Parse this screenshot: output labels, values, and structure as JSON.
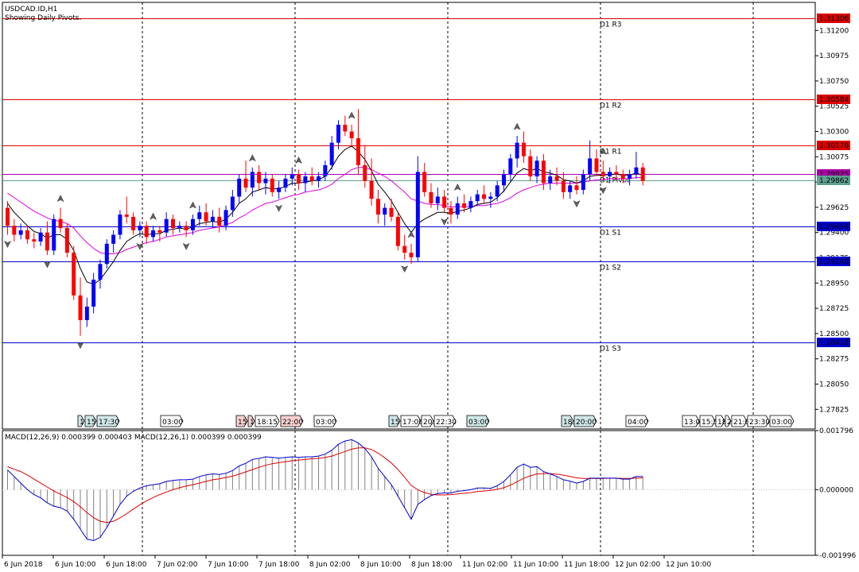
{
  "chart_data": [
    {
      "type": "candlestick",
      "symbol_title": "USDCAD.ID,H1",
      "subtitle": "Showing Daily Pivots.",
      "ylim": [
        1.2765,
        1.3145
      ],
      "y_ticks": [
        "1.31200",
        "1.30975",
        "1.30750",
        "1.30525",
        "1.30300",
        "1.30075",
        "1.29850",
        "1.29625",
        "1.29400",
        "1.29175",
        "1.28950",
        "1.28725",
        "1.28500",
        "1.28275",
        "1.28050",
        "1.27825"
      ],
      "pivots": [
        {
          "label": "D1 R3",
          "value": 1.31306,
          "price_label": "1.31306",
          "color": "#dd0000"
        },
        {
          "label": "D1 R2",
          "value": 1.30584,
          "price_label": "1.30584",
          "color": "#dd0000"
        },
        {
          "label": "D1 R1",
          "value": 1.30176,
          "price_label": "1.30176",
          "color": "#dd0000"
        },
        {
          "label": "D1 Pivot",
          "value": 1.29925,
          "price_label": "1.29925",
          "color": "#aa00aa"
        },
        {
          "label": "D1 S1",
          "value": 1.29454,
          "price_label": "1.29454",
          "color": "#0000cc"
        },
        {
          "label": "D1 S2",
          "value": 1.2914,
          "price_label": "1.29140",
          "color": "#0000cc"
        },
        {
          "label": "D1 S3",
          "value": 1.28418,
          "price_label": "1.28418",
          "color": "#0000cc"
        }
      ],
      "current_price": {
        "value": 1.29862,
        "price_label": "1.29862",
        "color": "#5fa090"
      },
      "bull_color": "#0000ff",
      "bear_color": "#ff0000",
      "candles": [
        [
          1.2962,
          1.2968,
          1.2938,
          1.2946
        ],
        [
          1.2946,
          1.2952,
          1.2932,
          1.2938
        ],
        [
          1.2938,
          1.2948,
          1.2934,
          1.2942
        ],
        [
          1.2942,
          1.2946,
          1.293,
          1.2934
        ],
        [
          1.2934,
          1.294,
          1.2926,
          1.2932
        ],
        [
          1.2932,
          1.2944,
          1.2928,
          1.294
        ],
        [
          1.294,
          1.295,
          1.292,
          1.2924
        ],
        [
          1.2924,
          1.2956,
          1.292,
          1.2952
        ],
        [
          1.2952,
          1.2962,
          1.294,
          1.2944
        ],
        [
          1.2944,
          1.2948,
          1.2918,
          1.2922
        ],
        [
          1.2922,
          1.2928,
          1.288,
          1.2884
        ],
        [
          1.2884,
          1.29,
          1.2848,
          1.2862
        ],
        [
          1.2862,
          1.2882,
          1.2856,
          1.2874
        ],
        [
          1.2874,
          1.2904,
          1.2868,
          1.2898
        ],
        [
          1.2898,
          1.2916,
          1.289,
          1.2912
        ],
        [
          1.2912,
          1.2934,
          1.2908,
          1.293
        ],
        [
          1.293,
          1.2942,
          1.2922,
          1.2938
        ],
        [
          1.2938,
          1.296,
          1.2934,
          1.2956
        ],
        [
          1.2956,
          1.2972,
          1.2948,
          1.2954
        ],
        [
          1.2954,
          1.2958,
          1.2938,
          1.2942
        ],
        [
          1.2942,
          1.295,
          1.2936,
          1.2946
        ],
        [
          1.2946,
          1.295,
          1.293,
          1.2936
        ],
        [
          1.2936,
          1.2946,
          1.2932,
          1.2942
        ],
        [
          1.2942,
          1.2946,
          1.2932,
          1.294
        ],
        [
          1.294,
          1.2958,
          1.2936,
          1.2952
        ],
        [
          1.2952,
          1.2956,
          1.2938,
          1.2944
        ],
        [
          1.2944,
          1.295,
          1.294,
          1.2946
        ],
        [
          1.2946,
          1.295,
          1.2936,
          1.2942
        ],
        [
          1.2942,
          1.2956,
          1.2938,
          1.2952
        ],
        [
          1.2952,
          1.2964,
          1.2946,
          1.2958
        ],
        [
          1.2958,
          1.2966,
          1.2946,
          1.295
        ],
        [
          1.295,
          1.296,
          1.2944,
          1.2954
        ],
        [
          1.2954,
          1.2962,
          1.294,
          1.2946
        ],
        [
          1.2946,
          1.2964,
          1.2942,
          1.296
        ],
        [
          1.296,
          1.2978,
          1.2954,
          1.2972
        ],
        [
          1.2972,
          1.2992,
          1.2966,
          1.2988
        ],
        [
          1.2988,
          1.3004,
          1.2976,
          1.298
        ],
        [
          1.298,
          1.2998,
          1.2972,
          1.2994
        ],
        [
          1.2994,
          1.3,
          1.2978,
          1.2984
        ],
        [
          1.2984,
          1.2994,
          1.2974,
          1.2988
        ],
        [
          1.2988,
          1.2992,
          1.2972,
          1.2976
        ],
        [
          1.2976,
          1.2986,
          1.297,
          1.298
        ],
        [
          1.298,
          1.2992,
          1.2976,
          1.2988
        ],
        [
          1.2988,
          1.2998,
          1.2982,
          1.2992
        ],
        [
          1.2992,
          1.2996,
          1.2978,
          1.2984
        ],
        [
          1.2984,
          1.2994,
          1.2976,
          1.299
        ],
        [
          1.299,
          1.2998,
          1.2982,
          1.2986
        ],
        [
          1.2986,
          1.2994,
          1.298,
          1.299
        ],
        [
          1.299,
          1.3004,
          1.2986,
          1.3
        ],
        [
          1.3,
          1.3026,
          1.2996,
          1.302
        ],
        [
          1.302,
          1.304,
          1.3014,
          1.3036
        ],
        [
          1.3036,
          1.3044,
          1.3026,
          1.303
        ],
        [
          1.303,
          1.3036,
          1.3016,
          1.3024
        ],
        [
          1.3024,
          1.305,
          1.2992,
          1.3
        ],
        [
          1.3,
          1.3018,
          1.298,
          1.2986
        ],
        [
          1.2986,
          1.3006,
          1.2964,
          1.297
        ],
        [
          1.297,
          1.2978,
          1.2948,
          1.2956
        ],
        [
          1.2956,
          1.2966,
          1.2946,
          1.2962
        ],
        [
          1.2962,
          1.297,
          1.295,
          1.2954
        ],
        [
          1.2954,
          1.2958,
          1.2924,
          1.2928
        ],
        [
          1.2928,
          1.2938,
          1.2916,
          1.2922
        ],
        [
          1.2922,
          1.293,
          1.2912,
          1.2918
        ],
        [
          1.2918,
          1.3008,
          1.2914,
          1.2994
        ],
        [
          1.2994,
          1.3002,
          1.2972,
          1.2976
        ],
        [
          1.2976,
          1.2984,
          1.2962,
          1.2966
        ],
        [
          1.2966,
          1.298,
          1.296,
          1.2972
        ],
        [
          1.2972,
          1.2978,
          1.2958,
          1.2962
        ],
        [
          1.2962,
          1.2968,
          1.2948,
          1.2956
        ],
        [
          1.2956,
          1.2972,
          1.2952,
          1.2966
        ],
        [
          1.2966,
          1.2974,
          1.2958,
          1.2962
        ],
        [
          1.2962,
          1.2972,
          1.2958,
          1.2968
        ],
        [
          1.2968,
          1.2978,
          1.2964,
          1.2974
        ],
        [
          1.2974,
          1.2982,
          1.2966,
          1.297
        ],
        [
          1.297,
          1.2976,
          1.2962,
          1.2972
        ],
        [
          1.2972,
          1.2986,
          1.2968,
          1.2982
        ],
        [
          1.2982,
          1.2996,
          1.2976,
          1.2992
        ],
        [
          1.2992,
          1.301,
          1.2986,
          1.3006
        ],
        [
          1.3006,
          1.3026,
          1.2998,
          1.302
        ],
        [
          1.302,
          1.303,
          1.3002,
          1.3008
        ],
        [
          1.3008,
          1.3014,
          1.2986,
          1.299
        ],
        [
          1.299,
          1.3008,
          1.2984,
          1.3004
        ],
        [
          1.3004,
          1.301,
          1.2978,
          1.2984
        ],
        [
          1.2984,
          1.2996,
          1.2978,
          1.299
        ],
        [
          1.299,
          1.2998,
          1.2982,
          1.2986
        ],
        [
          1.2986,
          1.2994,
          1.297,
          1.2976
        ],
        [
          1.2976,
          1.2986,
          1.297,
          1.2982
        ],
        [
          1.2982,
          1.299,
          1.2974,
          1.2978
        ],
        [
          1.2978,
          1.2996,
          1.2974,
          1.2992
        ],
        [
          1.2992,
          1.3022,
          1.2986,
          1.3006
        ],
        [
          1.3006,
          1.3014,
          1.299,
          1.2994
        ],
        [
          1.2994,
          1.3004,
          1.2986,
          1.299
        ],
        [
          1.299,
          1.2998,
          1.2984,
          1.2994
        ],
        [
          1.2994,
          1.3,
          1.2986,
          1.2992
        ],
        [
          1.2992,
          1.2996,
          1.2984,
          1.2988
        ],
        [
          1.2988,
          1.2996,
          1.2982,
          1.2992
        ],
        [
          1.2992,
          1.3012,
          1.2988,
          1.2998
        ],
        [
          1.2998,
          1.3002,
          1.2982,
          1.2986
        ]
      ],
      "ma_fast": [
        1.2966,
        1.2958,
        1.2952,
        1.2946,
        1.2941,
        1.2939,
        1.2935,
        1.2938,
        1.2938,
        1.2934,
        1.2924,
        1.2908,
        1.2896,
        1.2894,
        1.2898,
        1.2906,
        1.2914,
        1.2924,
        1.2932,
        1.2936,
        1.2939,
        1.2938,
        1.2939,
        1.2939,
        1.2942,
        1.2943,
        1.2944,
        1.2943,
        1.2945,
        1.2948,
        1.2949,
        1.295,
        1.2949,
        1.2952,
        1.2958,
        1.2966,
        1.297,
        1.2976,
        1.2978,
        1.298,
        1.2979,
        1.2979,
        1.2981,
        1.2984,
        1.2984,
        1.2985,
        1.2986,
        1.2987,
        1.299,
        1.2998,
        1.3008,
        1.3014,
        1.3017,
        1.3012,
        1.3005,
        1.2995,
        1.2983,
        1.2976,
        1.2968,
        1.2958,
        1.2948,
        1.294,
        1.2948,
        1.2952,
        1.2955,
        1.2958,
        1.2958,
        1.2957,
        1.2959,
        1.296,
        1.2962,
        1.2965,
        1.2966,
        1.2967,
        1.2971,
        1.2977,
        1.2985,
        1.2993,
        1.2997,
        1.2995,
        1.2997,
        1.2994,
        1.2993,
        1.2991,
        1.2987,
        1.2986,
        1.2984,
        1.2986,
        1.299,
        1.2991,
        1.2991,
        1.2992,
        1.2992,
        1.2991,
        1.2991,
        1.2993,
        1.2991
      ],
      "ma_slow": [
        1.2975,
        1.2971,
        1.2967,
        1.2963,
        1.2959,
        1.2956,
        1.2953,
        1.2951,
        1.295,
        1.2948,
        1.2944,
        1.2937,
        1.2931,
        1.2926,
        1.2922,
        1.2921,
        1.2921,
        1.2922,
        1.2925,
        1.2927,
        1.2929,
        1.2931,
        1.2932,
        1.2934,
        1.2936,
        1.2937,
        1.2938,
        1.2939,
        1.294,
        1.2942,
        1.2943,
        1.2944,
        1.2945,
        1.2947,
        1.2949,
        1.2953,
        1.2956,
        1.296,
        1.2963,
        1.2966,
        1.2967,
        1.2969,
        1.2971,
        1.2973,
        1.2974,
        1.2976,
        1.2977,
        1.2978,
        1.298,
        1.2983,
        1.2988,
        1.2992,
        1.2996,
        1.2998,
        1.2998,
        1.2996,
        1.2993,
        1.299,
        1.2986,
        1.2981,
        1.2976,
        1.297,
        1.2968,
        1.2966,
        1.2965,
        1.2965,
        1.2964,
        1.2963,
        1.2963,
        1.2963,
        1.2963,
        1.2964,
        1.2964,
        1.2965,
        1.2966,
        1.2968,
        1.2971,
        1.2975,
        1.2978,
        1.298,
        1.2982,
        1.2983,
        1.2984,
        1.2984,
        1.2984,
        1.2984,
        1.2984,
        1.2985,
        1.2986,
        1.2987,
        1.2987,
        1.2988,
        1.2988,
        1.2988,
        1.2988,
        1.2989,
        1.2989
      ],
      "fractal_highs": [
        8,
        22,
        28,
        37,
        44,
        52,
        61,
        68,
        77,
        90
      ],
      "fractal_lows": [
        0,
        6,
        11,
        20,
        27,
        41,
        60,
        66,
        86,
        90
      ],
      "session_boxes": [
        {
          "label": "1",
          "tint": "#cfe8e8"
        },
        {
          "label": "15:",
          "tint": "#cfe8e8"
        },
        {
          "label": "17:30",
          "tint": "#cfe8e8"
        },
        {
          "label": "03:00",
          "tint": "#ffffff"
        },
        {
          "label": "15:",
          "tint": "#f8d0d0"
        },
        {
          "label": "1",
          "tint": "#f8d0d0"
        },
        {
          "label": "18:15",
          "tint": "#ffffff"
        },
        {
          "label": "22:00",
          "tint": "#f8d0d0"
        },
        {
          "label": "03:00",
          "tint": "#ffffff"
        },
        {
          "label": "15:",
          "tint": "#cfe8e8"
        },
        {
          "label": "17:00",
          "tint": "#ffffff"
        },
        {
          "label": "20:",
          "tint": "#ffffff"
        },
        {
          "label": "22:30",
          "tint": "#ffffff"
        },
        {
          "label": "03:00",
          "tint": "#cfe8e8"
        },
        {
          "label": "18:",
          "tint": "#cfe8e8"
        },
        {
          "label": "20:00",
          "tint": "#cfe8e8"
        },
        {
          "label": "04:00",
          "tint": "#ffffff"
        },
        {
          "label": "13:0",
          "tint": "#ffffff"
        },
        {
          "label": "15:5",
          "tint": "#ffffff"
        },
        {
          "label": "18",
          "tint": "#ffffff"
        },
        {
          "label": "2",
          "tint": "#ffffff"
        },
        {
          "label": "21:0",
          "tint": "#ffffff"
        },
        {
          "label": "23:30",
          "tint": "#ffffff"
        },
        {
          "label": "03:00",
          "tint": "#ffffff"
        }
      ]
    },
    {
      "type": "macd",
      "label": "MACD(12,26,9) 0.000399 0.000403 MACD(12,26,1) 0.000399 0.000399",
      "ylim": [
        -0.001996,
        0.001796
      ],
      "y_ticks": [
        "0.001796",
        "0.000000",
        "-0.001996"
      ],
      "x_ticks": [
        "6 Jun 2018",
        "6 Jun 10:00",
        "6 Jun 18:00",
        "7 Jun 02:00",
        "7 Jun 10:00",
        "7 Jun 18:00",
        "8 Jun 02:00",
        "8 Jun 10:00",
        "8 Jun 18:00",
        "11 Jun 02:00",
        "11 Jun 10:00",
        "11 Jun 18:00",
        "12 Jun 02:00",
        "12 Jun 10:00"
      ],
      "macd_color": "#0000cc",
      "signal_color": "#dd0000",
      "macd": [
        0.0006,
        0.0004,
        0.0002,
        0.0,
        -0.00015,
        -0.00025,
        -0.0004,
        -0.0005,
        -0.00055,
        -0.00065,
        -0.0009,
        -0.0012,
        -0.0015,
        -0.00155,
        -0.00145,
        -0.00115,
        -0.0008,
        -0.00045,
        -0.0002,
        -5e-05,
        5e-05,
        0.00012,
        0.00015,
        0.00018,
        0.00025,
        0.00028,
        0.0003,
        0.0003,
        0.00032,
        0.0004,
        0.00045,
        0.00048,
        0.00046,
        0.0005,
        0.00058,
        0.00072,
        0.0008,
        0.00092,
        0.00095,
        0.001,
        0.00098,
        0.00096,
        0.00098,
        0.001,
        0.00098,
        0.001,
        0.001,
        0.00102,
        0.00108,
        0.0012,
        0.00138,
        0.00148,
        0.00152,
        0.00142,
        0.00125,
        0.001,
        0.00065,
        0.0004,
        0.00015,
        -0.0002,
        -0.00055,
        -0.0009,
        -0.00045,
        -0.0003,
        -0.00018,
        -0.00012,
        -0.0001,
        -0.0001,
        -5e-05,
        -3e-05,
        0.0,
        5e-05,
        5e-05,
        4e-05,
        0.00012,
        0.00025,
        0.00045,
        0.00068,
        0.00078,
        0.00068,
        0.0007,
        0.00055,
        0.00048,
        0.0004,
        0.0003,
        0.00026,
        0.0002,
        0.00025,
        0.00035,
        0.00035,
        0.00035,
        0.00035,
        0.00035,
        0.00032,
        0.00032,
        0.0004,
        0.0004
      ],
      "signal": [
        0.0007,
        0.00062,
        0.00055,
        0.00044,
        0.00032,
        0.0002,
        8e-05,
        -4e-05,
        -0.00014,
        -0.00024,
        -0.00036,
        -0.00052,
        -0.0007,
        -0.00085,
        -0.00096,
        -0.001,
        -0.00096,
        -0.00086,
        -0.00073,
        -0.00059,
        -0.00046,
        -0.00034,
        -0.00024,
        -0.00015,
        -7e-05,
        0.0,
        6e-05,
        0.00011,
        0.00015,
        0.0002,
        0.00025,
        0.0003,
        0.00033,
        0.00037,
        0.00041,
        0.00047,
        0.00054,
        0.00061,
        0.00068,
        0.00074,
        0.00079,
        0.00082,
        0.00085,
        0.00088,
        0.0009,
        0.00092,
        0.00094,
        0.00095,
        0.00098,
        0.00102,
        0.00109,
        0.00116,
        0.00123,
        0.00127,
        0.00127,
        0.00122,
        0.00111,
        0.00097,
        0.00081,
        0.00061,
        0.00038,
        0.00013,
        0.0,
        -9e-05,
        -0.00014,
        -0.00016,
        -0.00016,
        -0.00015,
        -0.00013,
        -0.00011,
        -9e-05,
        -6e-05,
        -4e-05,
        -2e-05,
        1e-05,
        6e-05,
        0.00014,
        0.00024,
        0.00035,
        0.00042,
        0.00048,
        0.00049,
        0.00049,
        0.00047,
        0.00044,
        0.0004,
        0.00036,
        0.00034,
        0.00034,
        0.00034,
        0.00034,
        0.00035,
        0.00035,
        0.00034,
        0.00034,
        0.00035,
        0.00036
      ]
    }
  ]
}
